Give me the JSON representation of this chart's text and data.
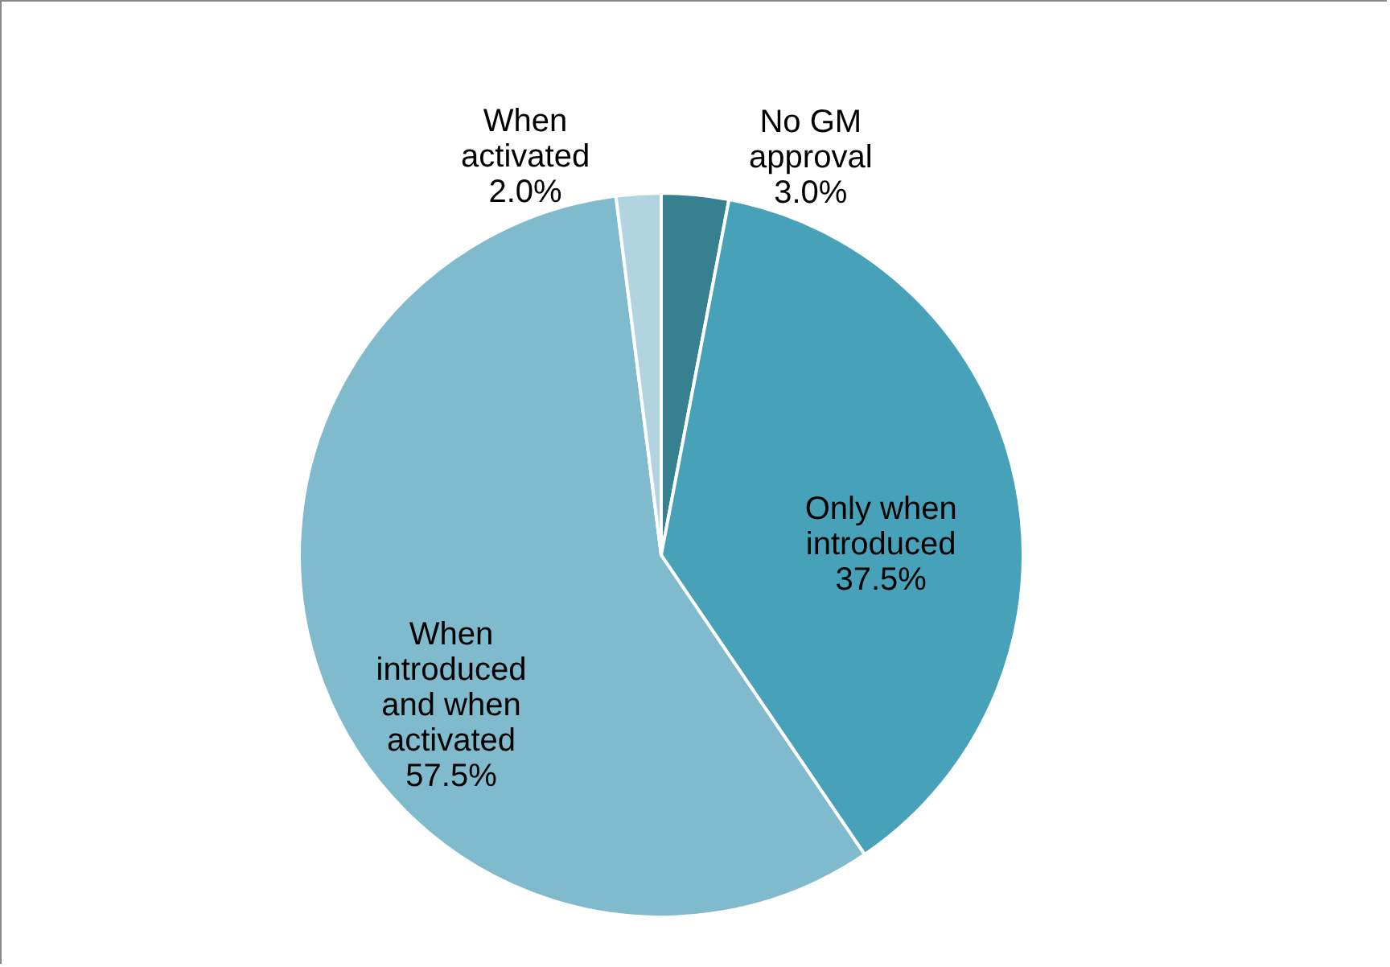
{
  "chart_data": {
    "type": "pie",
    "categories": [
      "No GM approval",
      "Only when introduced",
      "When introduced and when activated",
      "When activated"
    ],
    "values": [
      3.0,
      37.5,
      57.5,
      2.0
    ],
    "value_labels": [
      "3.0%",
      "37.5%",
      "57.5%",
      "2.0%"
    ],
    "colors": [
      "#37808f",
      "#47a1b8",
      "#7fbacd",
      "#b1d4e0"
    ],
    "legend": false
  }
}
